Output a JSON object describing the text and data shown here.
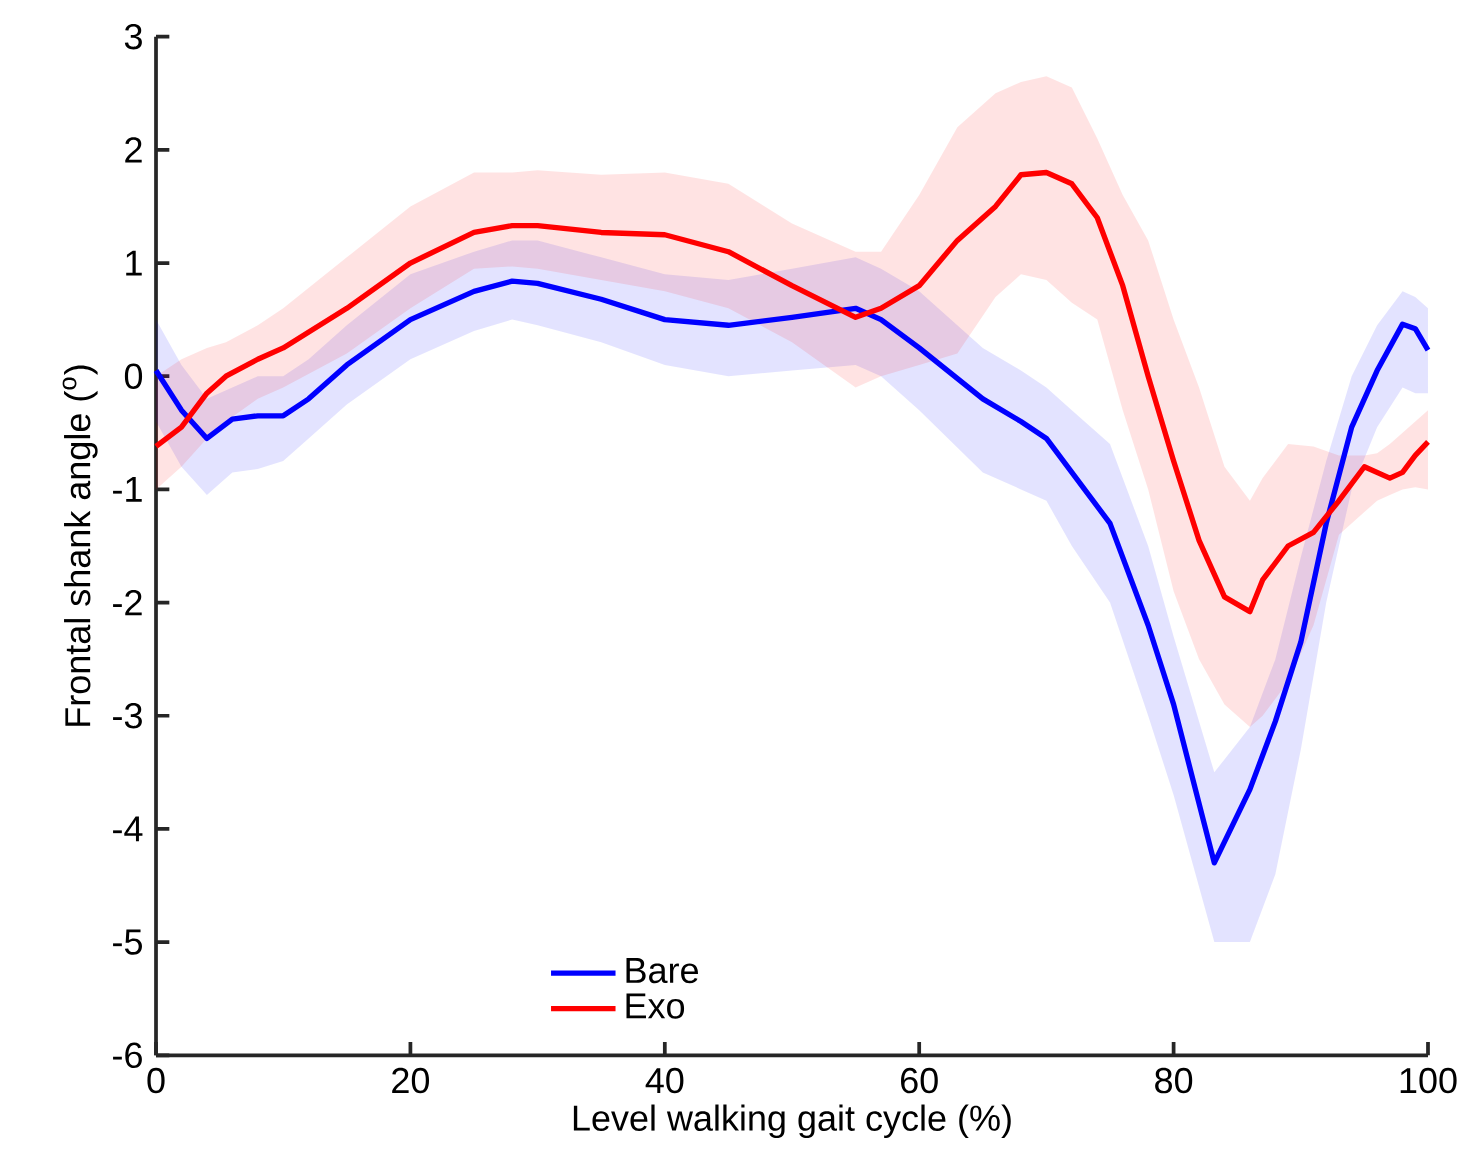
{
  "chart_data": {
    "type": "line",
    "xlabel": "Level walking gait cycle (%)",
    "ylabel": "Frontal shank angle ($^{o}$)",
    "xlim": [
      0,
      100
    ],
    "ylim": [
      -6,
      3
    ],
    "xticks": [
      0,
      20,
      40,
      60,
      80,
      100
    ],
    "yticks": [
      -6,
      -5,
      -4,
      -3,
      -2,
      -1,
      0,
      1,
      2,
      3
    ],
    "grid": false,
    "legend": "bottom",
    "marker": "none",
    "line_style": "solid",
    "series": [
      {
        "name": "Bare",
        "color": "#0000ff",
        "x": [
          0,
          2,
          4,
          6,
          8,
          10,
          12,
          15,
          20,
          25,
          28,
          30,
          35,
          40,
          45,
          50,
          55,
          57,
          60,
          65,
          68,
          70,
          72,
          75,
          78,
          80,
          83.2,
          86,
          88,
          90,
          92,
          94,
          96,
          98,
          99,
          100
        ],
        "values": [
          0.05,
          -0.3,
          -0.55,
          -0.38,
          -0.35,
          -0.35,
          -0.2,
          0.1,
          0.5,
          0.75,
          0.84,
          0.82,
          0.68,
          0.5,
          0.45,
          0.52,
          0.6,
          0.5,
          0.25,
          -0.2,
          -0.4,
          -0.55,
          -0.85,
          -1.3,
          -2.2,
          -2.9,
          -4.3,
          -3.65,
          -3.05,
          -2.35,
          -1.3,
          -0.45,
          0.05,
          0.46,
          0.42,
          0.23
        ],
        "upper": [
          0.5,
          0.1,
          -0.2,
          -0.1,
          0.0,
          0.0,
          0.15,
          0.45,
          0.9,
          1.1,
          1.2,
          1.2,
          1.05,
          0.9,
          0.85,
          0.95,
          1.05,
          0.95,
          0.75,
          0.25,
          0.05,
          -0.1,
          -0.3,
          -0.6,
          -1.5,
          -2.3,
          -3.5,
          -3.1,
          -2.5,
          -1.6,
          -0.75,
          0.0,
          0.45,
          0.75,
          0.7,
          0.6
        ],
        "lower": [
          -0.4,
          -0.8,
          -1.05,
          -0.85,
          -0.82,
          -0.75,
          -0.55,
          -0.25,
          0.15,
          0.4,
          0.5,
          0.45,
          0.3,
          0.1,
          0.0,
          0.05,
          0.1,
          0.0,
          -0.3,
          -0.85,
          -1.0,
          -1.1,
          -1.5,
          -2.0,
          -3.0,
          -3.7,
          -5.0,
          -5.0,
          -4.4,
          -3.3,
          -2.0,
          -1.0,
          -0.45,
          -0.1,
          -0.15,
          -0.15
        ]
      },
      {
        "name": "Exo",
        "color": "#ff0000",
        "x": [
          0,
          2,
          4,
          5.5,
          8,
          10,
          15,
          20,
          25,
          28,
          30,
          35,
          40,
          45,
          50,
          55,
          57,
          60,
          63,
          66,
          68,
          70,
          72,
          74,
          76,
          78,
          80,
          82,
          84,
          86,
          87,
          89,
          91,
          93,
          95,
          96,
          97,
          98,
          99,
          100
        ],
        "values": [
          -0.62,
          -0.45,
          -0.15,
          0.0,
          0.15,
          0.25,
          0.6,
          1.0,
          1.27,
          1.33,
          1.33,
          1.27,
          1.25,
          1.1,
          0.8,
          0.52,
          0.6,
          0.8,
          1.2,
          1.5,
          1.78,
          1.8,
          1.7,
          1.4,
          0.8,
          0.0,
          -0.75,
          -1.45,
          -1.95,
          -2.08,
          -1.8,
          -1.5,
          -1.38,
          -1.1,
          -0.8,
          -0.85,
          -0.9,
          -0.85,
          -0.7,
          -0.58
        ],
        "upper": [
          0.0,
          0.15,
          0.25,
          0.3,
          0.45,
          0.6,
          1.05,
          1.5,
          1.8,
          1.8,
          1.82,
          1.78,
          1.8,
          1.7,
          1.35,
          1.1,
          1.1,
          1.6,
          2.2,
          2.5,
          2.6,
          2.65,
          2.55,
          2.1,
          1.6,
          1.2,
          0.5,
          -0.1,
          -0.8,
          -1.1,
          -0.9,
          -0.6,
          -0.62,
          -0.7,
          -0.7,
          -0.68,
          -0.6,
          -0.5,
          -0.4,
          -0.3
        ],
        "lower": [
          -1.0,
          -0.8,
          -0.55,
          -0.4,
          -0.2,
          -0.1,
          0.2,
          0.6,
          0.95,
          0.97,
          0.95,
          0.85,
          0.75,
          0.6,
          0.3,
          -0.1,
          0.0,
          0.1,
          0.2,
          0.7,
          0.9,
          0.85,
          0.65,
          0.5,
          -0.3,
          -1.0,
          -1.9,
          -2.5,
          -2.9,
          -3.1,
          -3.0,
          -2.7,
          -2.2,
          -1.4,
          -1.2,
          -1.1,
          -1.05,
          -1.0,
          -0.98,
          -1.0
        ]
      }
    ]
  }
}
